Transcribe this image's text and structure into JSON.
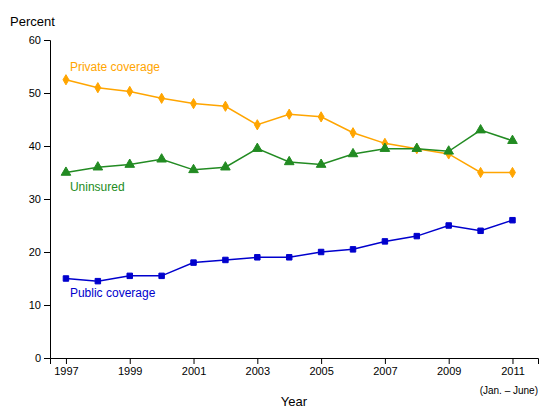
{
  "chart_data": {
    "type": "line",
    "xlabel": "Year",
    "ylabel": "Percent",
    "annotation": "(Jan. – June)",
    "x": [
      1997,
      1998,
      1999,
      2000,
      2001,
      2002,
      2003,
      2004,
      2005,
      2006,
      2007,
      2008,
      2009,
      2010,
      2011
    ],
    "series": [
      {
        "name": "Private coverage",
        "color": "#FFA500",
        "marker": "diamond",
        "values": [
          52.5,
          51.0,
          50.3,
          49.0,
          48.0,
          47.5,
          44.0,
          46.0,
          45.5,
          42.5,
          40.5,
          39.5,
          38.5,
          35.0,
          35.0
        ]
      },
      {
        "name": "Uninsured",
        "color": "#228B22",
        "marker": "triangle",
        "values": [
          35.0,
          36.0,
          36.5,
          37.5,
          35.5,
          36.0,
          39.5,
          37.0,
          36.5,
          38.5,
          39.5,
          39.5,
          39.0,
          43.0,
          41.0
        ]
      },
      {
        "name": "Public coverage",
        "color": "#0000CD",
        "marker": "square",
        "values": [
          15.0,
          14.5,
          15.5,
          15.5,
          18.0,
          18.5,
          19.0,
          19.0,
          20.0,
          20.5,
          22.0,
          23.0,
          25.0,
          24.0,
          26.0
        ]
      }
    ],
    "xlim": [
      1996.5,
      2011.8
    ],
    "xticks": [
      1997,
      1999,
      2001,
      2003,
      2005,
      2007,
      2009,
      2011
    ],
    "ylim": [
      0,
      60
    ],
    "yticks": [
      0,
      10,
      20,
      30,
      40,
      50,
      60
    ],
    "grid": false
  }
}
